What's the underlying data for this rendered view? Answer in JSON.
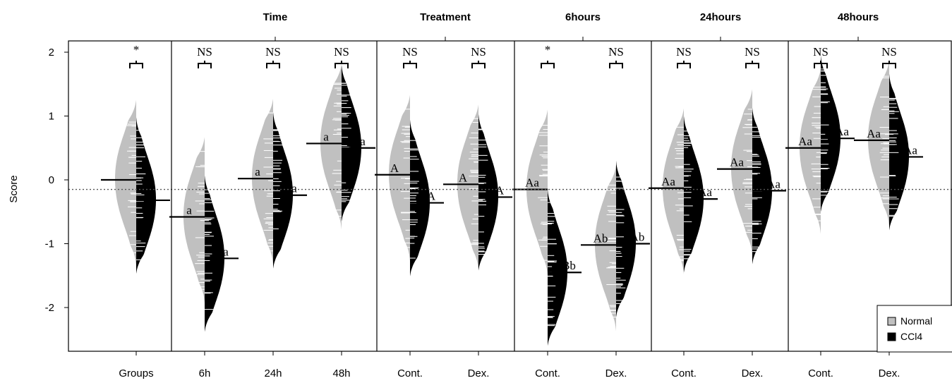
{
  "chart_data": {
    "type": "beanplot",
    "ylabel": "Score",
    "ylim": [
      -2.7,
      2.2
    ],
    "yticks": [
      -2,
      -1,
      0,
      1,
      2
    ],
    "reference_line": -0.15,
    "colors": {
      "Normal": "#c0c0c0",
      "CCl4": "#000000"
    },
    "legend": {
      "position": "bottom-right",
      "entries": [
        "Normal",
        "CCl4"
      ]
    },
    "panels": [
      {
        "title": "",
        "categories": [
          {
            "label": "Groups",
            "sig": "*",
            "normal_median": 0.0,
            "ccl4_median": -0.32,
            "normal_label": "",
            "ccl4_label": ""
          }
        ]
      },
      {
        "title": "Time",
        "categories": [
          {
            "label": "6h",
            "sig": "NS",
            "normal_median": -0.58,
            "ccl4_median": -1.23,
            "normal_label": "a",
            "ccl4_label": "a"
          },
          {
            "label": "24h",
            "sig": "NS",
            "normal_median": 0.02,
            "ccl4_median": -0.24,
            "normal_label": "a",
            "ccl4_label": "a"
          },
          {
            "label": "48h",
            "sig": "NS",
            "normal_median": 0.57,
            "ccl4_median": 0.5,
            "normal_label": "a",
            "ccl4_label": "a"
          }
        ]
      },
      {
        "title": "Treatment",
        "categories": [
          {
            "label": "Cont.",
            "sig": "NS",
            "normal_median": 0.08,
            "ccl4_median": -0.36,
            "normal_label": "A",
            "ccl4_label": "A"
          },
          {
            "label": "Dex.",
            "sig": "NS",
            "normal_median": -0.07,
            "ccl4_median": -0.27,
            "normal_label": "A",
            "ccl4_label": "A"
          }
        ]
      },
      {
        "title": "6hours",
        "categories": [
          {
            "label": "Cont.",
            "sig": "*",
            "normal_median": -0.15,
            "ccl4_median": -1.45,
            "normal_label": "Aa",
            "ccl4_label": "Bb"
          },
          {
            "label": "Dex.",
            "sig": "NS",
            "normal_median": -1.02,
            "ccl4_median": -1.0,
            "normal_label": "Ab",
            "ccl4_label": "Ab"
          }
        ]
      },
      {
        "title": "24hours",
        "categories": [
          {
            "label": "Cont.",
            "sig": "NS",
            "normal_median": -0.13,
            "ccl4_median": -0.3,
            "normal_label": "Aa",
            "ccl4_label": "Aa"
          },
          {
            "label": "Dex.",
            "sig": "NS",
            "normal_median": 0.17,
            "ccl4_median": -0.17,
            "normal_label": "Aa",
            "ccl4_label": "Aa"
          }
        ]
      },
      {
        "title": "48hours",
        "categories": [
          {
            "label": "Cont.",
            "sig": "NS",
            "normal_median": 0.5,
            "ccl4_median": 0.65,
            "normal_label": "Aa",
            "ccl4_label": "Aa"
          },
          {
            "label": "Dex.",
            "sig": "NS",
            "normal_median": 0.62,
            "ccl4_median": 0.36,
            "normal_label": "Aa",
            "ccl4_label": "Aa"
          }
        ]
      }
    ]
  }
}
